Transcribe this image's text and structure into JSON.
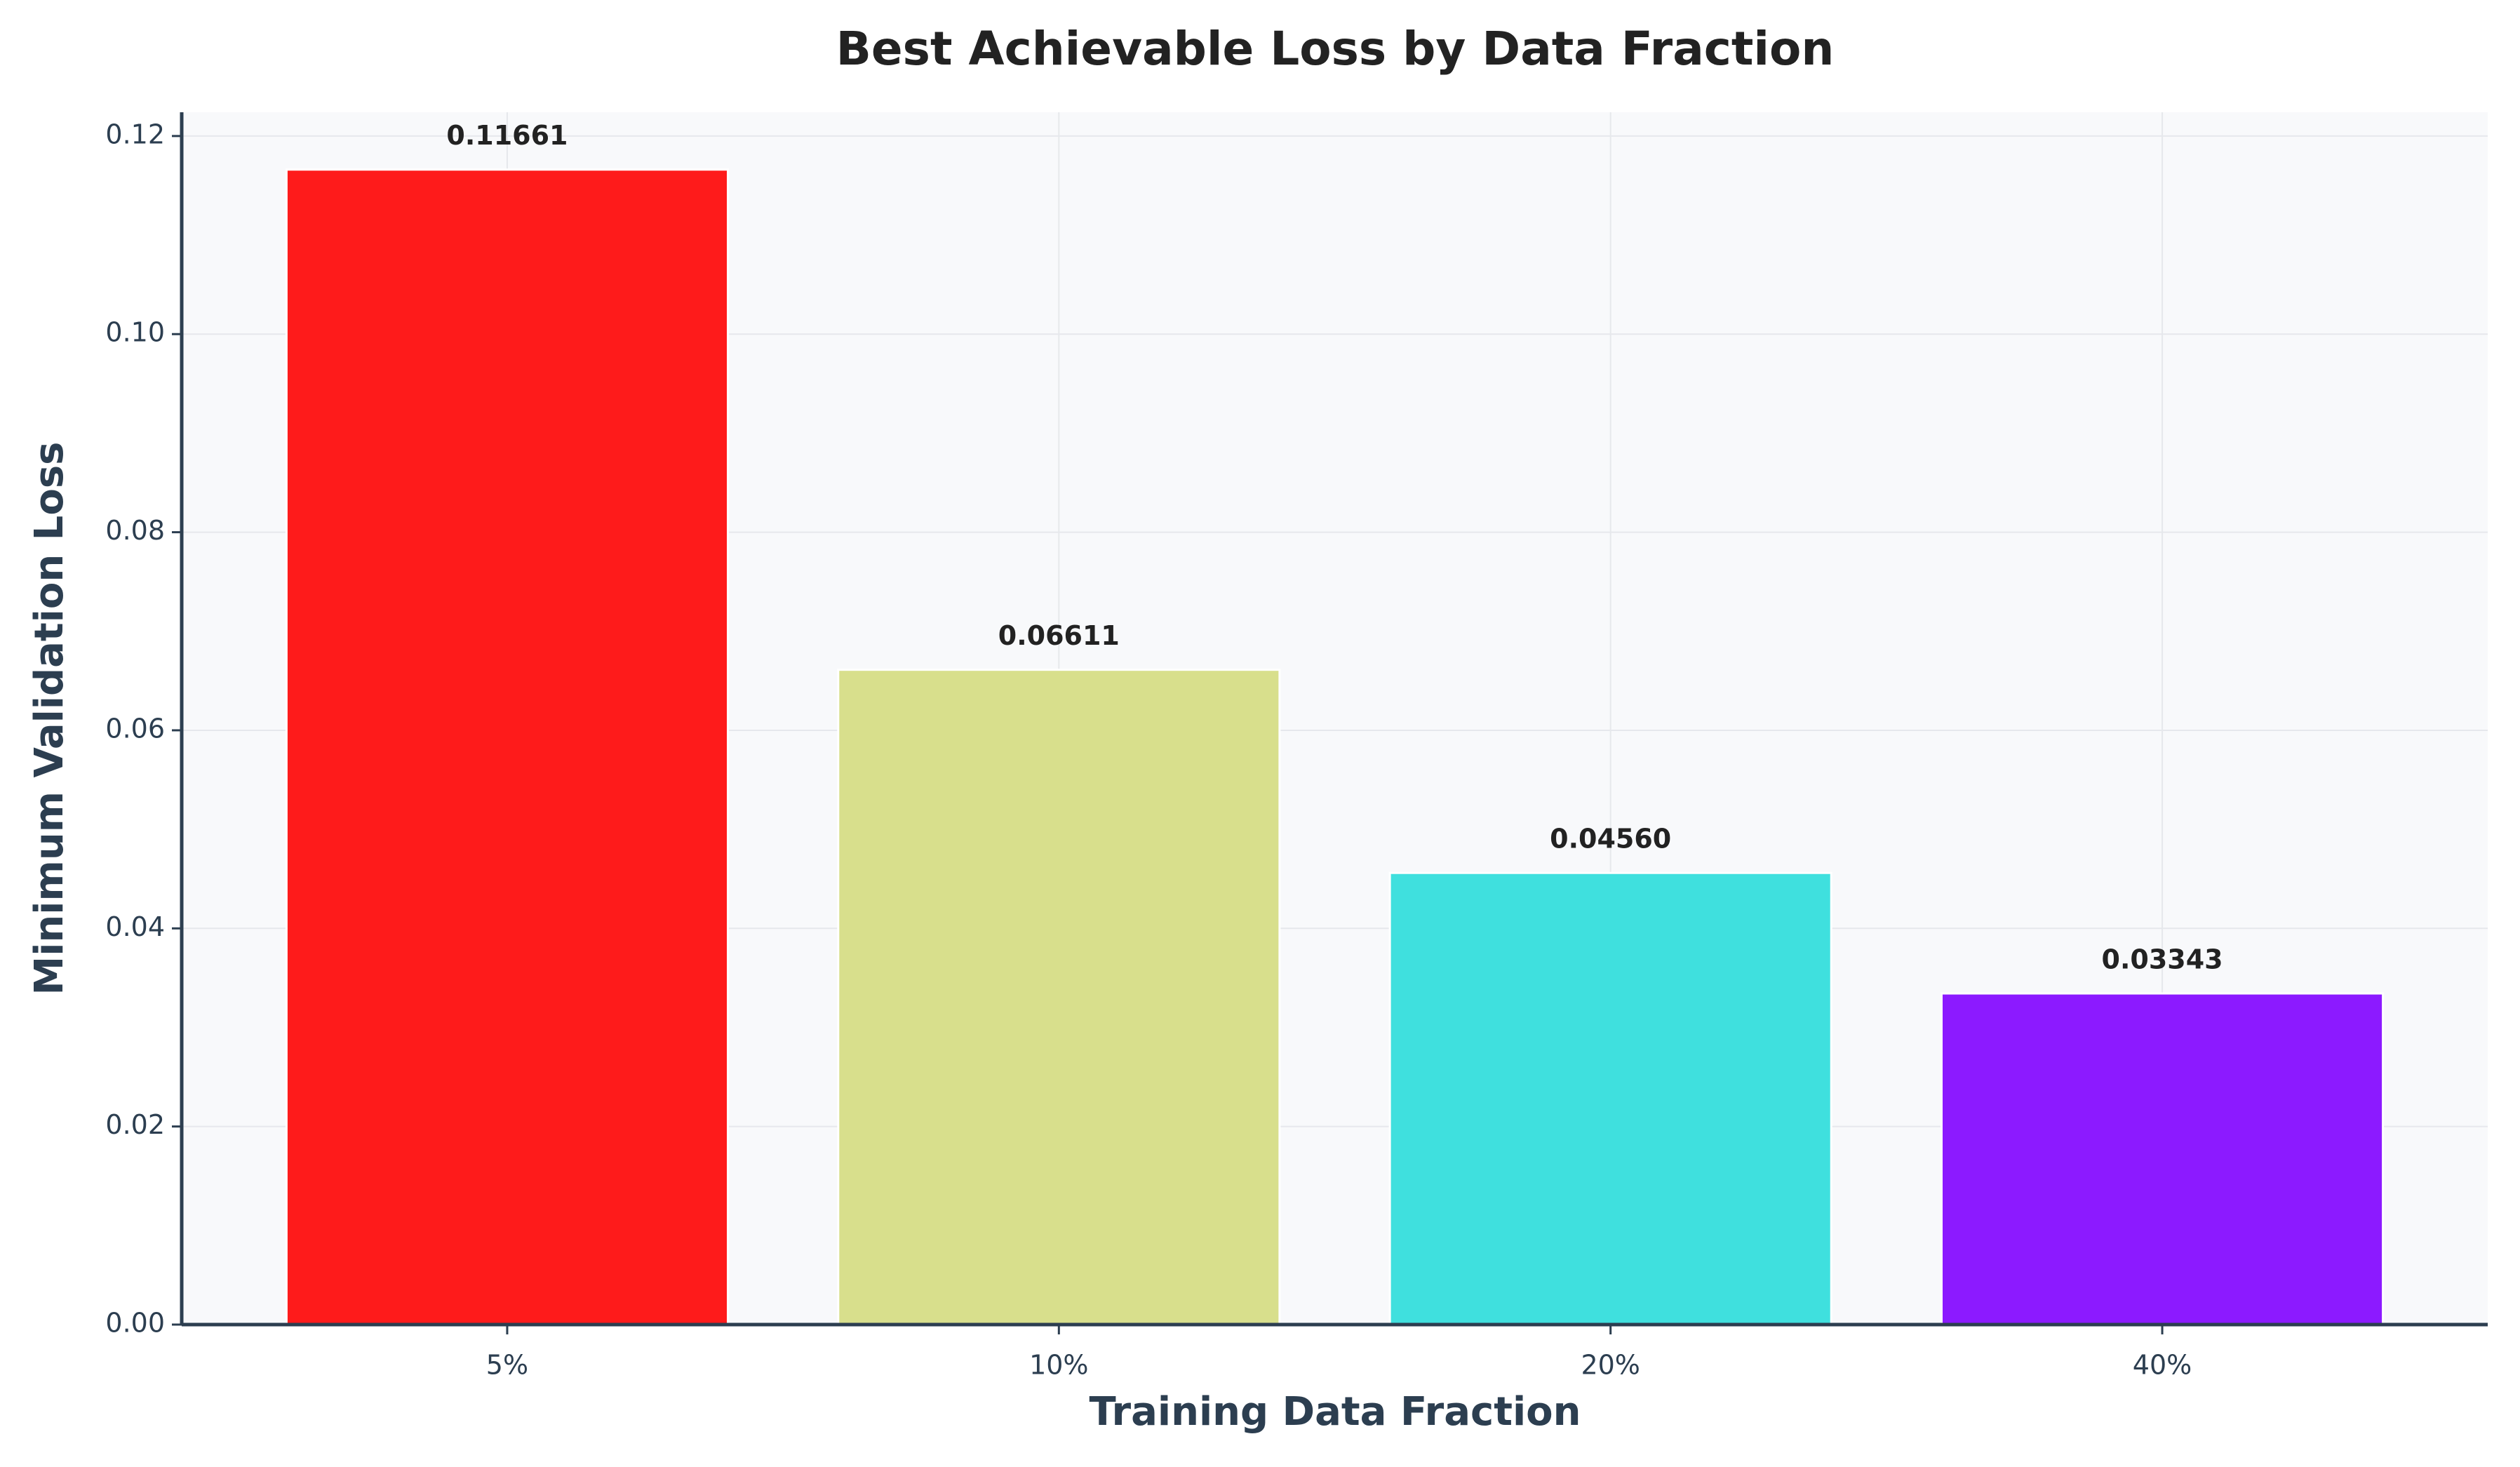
{
  "chart_data": {
    "type": "bar",
    "title": "Best Achievable Loss by Data Fraction",
    "x_label": "Training Data Fraction",
    "y_label": "Minimum Validation Loss",
    "categories": [
      "5%",
      "10%",
      "20%",
      "40%"
    ],
    "values": [
      0.11661,
      0.06611,
      0.0456,
      0.03343
    ],
    "value_labels": [
      "0.11661",
      "0.06611",
      "0.04560",
      "0.03343"
    ],
    "colors": [
      "#fe1b1b",
      "#d8df8c",
      "#3fe0de",
      "#8c1aff"
    ],
    "ylim": [
      0,
      0.1224
    ],
    "yticks": [
      {
        "value": 0,
        "label": "0.00"
      },
      {
        "value": 0.02,
        "label": "0.02"
      },
      {
        "value": 0.04,
        "label": "0.04"
      },
      {
        "value": 0.06,
        "label": "0.06"
      },
      {
        "value": 0.08,
        "label": "0.08"
      },
      {
        "value": 0.1,
        "label": "0.10"
      },
      {
        "value": 0.12,
        "label": "0.12"
      }
    ],
    "grid": true
  }
}
